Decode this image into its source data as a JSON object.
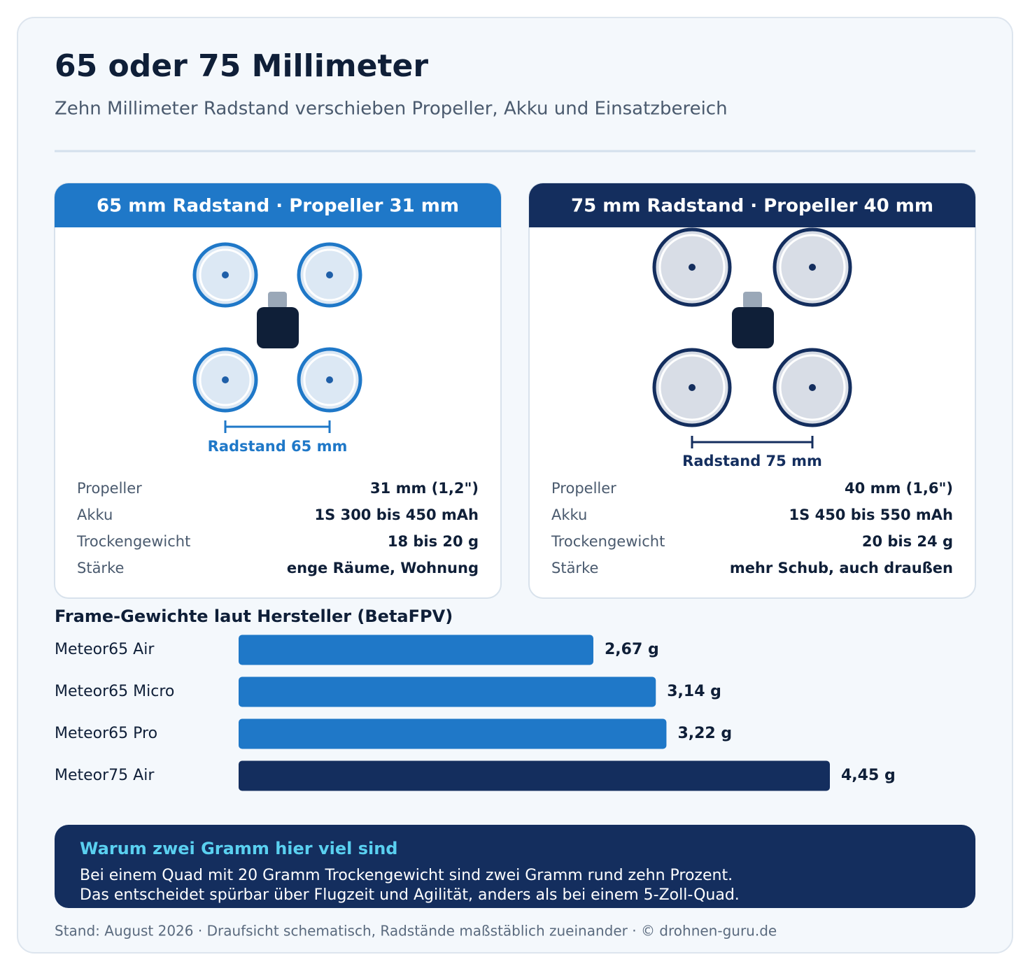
{
  "header": {
    "title": "65 oder 75 Millimeter",
    "subtitle": "Zehn Millimeter Radstand verschieben Propeller, Akku und Einsatzbereich"
  },
  "cards": [
    {
      "title": "65 mm Radstand · Propeller 31 mm",
      "scale_label": "Radstand 65 mm",
      "specs": [
        [
          "Propeller",
          "31 mm (1,2\")"
        ],
        [
          "Akku",
          "1S 300 bis 450 mAh"
        ],
        [
          "Trockengewicht",
          "18 bis 20 g"
        ],
        [
          "Stärke",
          "enge Räume, Wohnung"
        ]
      ]
    },
    {
      "title": "75 mm Radstand · Propeller 40 mm",
      "scale_label": "Radstand 75 mm",
      "specs": [
        [
          "Propeller",
          "40 mm (1,6\")"
        ],
        [
          "Akku",
          "1S 450 bis 550 mAh"
        ],
        [
          "Trockengewicht",
          "20 bis 24 g"
        ],
        [
          "Stärke",
          "mehr Schub, auch draußen"
        ]
      ]
    }
  ],
  "chart_data": {
    "type": "bar",
    "orientation": "horizontal",
    "title": "Frame-Gewichte laut Hersteller (BetaFPV)",
    "categories": [
      "Meteor65 Air",
      "Meteor65 Micro",
      "Meteor65 Pro",
      "Meteor75 Air"
    ],
    "values": [
      2.67,
      3.14,
      3.22,
      4.45
    ],
    "value_labels": [
      "2,67 g",
      "3,14 g",
      "3,22 g",
      "4,45 g"
    ],
    "colors": [
      "#1f78c8",
      "#1f78c8",
      "#1f78c8",
      "#142e5e"
    ]
  },
  "callout": {
    "title": "Warum zwei Gramm hier viel sind",
    "lines": [
      "Bei einem Quad mit 20 Gramm Trockengewicht sind zwei Gramm rund zehn Prozent.",
      "Das entscheidet spürbar über Flugzeit und Agilität, anders als bei einem 5-Zoll-Quad."
    ]
  },
  "footer": "Stand: August 2026 · Draufsicht schematisch, Radstände maßstäblich zueinander · © drohnen-guru.de"
}
